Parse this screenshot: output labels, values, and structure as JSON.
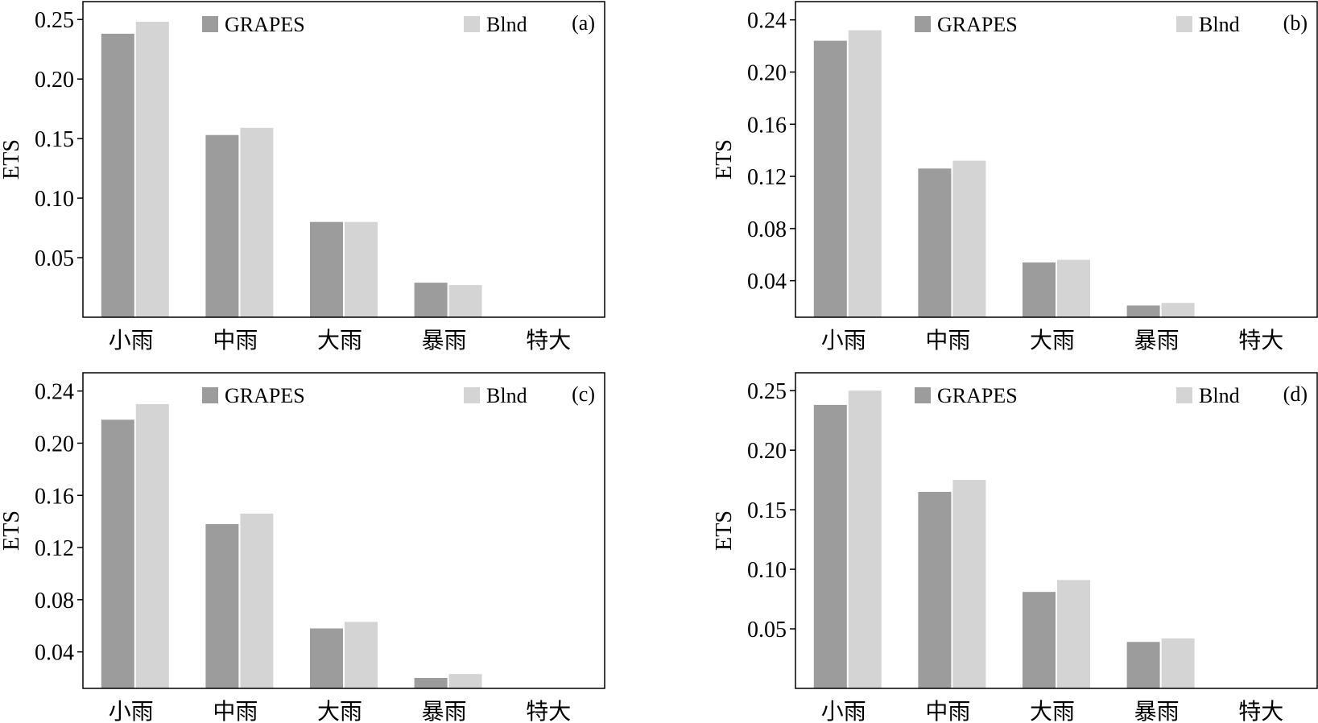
{
  "colors": {
    "grapes": "#9c9c9c",
    "blnd": "#d4d4d4",
    "axis": "#000000"
  },
  "legend": {
    "series_a": "GRAPES",
    "series_b": "Blnd"
  },
  "chart_data": [
    {
      "panel": "(a)",
      "type": "bar",
      "ylabel": "ETS",
      "categories": [
        "小雨",
        "中雨",
        "大雨",
        "暴雨",
        "特大"
      ],
      "ylim": [
        0.0,
        0.265
      ],
      "yticks": [
        "0.05",
        "0.10",
        "0.15",
        "0.20",
        "0.25"
      ],
      "grid": false,
      "legend_position": "top",
      "series": [
        {
          "name": "GRAPES",
          "values": [
            0.238,
            0.153,
            0.08,
            0.029,
            0.0
          ]
        },
        {
          "name": "Blnd",
          "values": [
            0.248,
            0.159,
            0.08,
            0.027,
            0.0
          ]
        }
      ]
    },
    {
      "panel": "(b)",
      "type": "bar",
      "ylabel": "ETS",
      "categories": [
        "小雨",
        "中雨",
        "大雨",
        "暴雨",
        "特大"
      ],
      "ylim": [
        0.012,
        0.254
      ],
      "yticks": [
        "0.04",
        "0.08",
        "0.12",
        "0.16",
        "0.20",
        "0.24"
      ],
      "grid": false,
      "legend_position": "top",
      "series": [
        {
          "name": "GRAPES",
          "values": [
            0.224,
            0.126,
            0.054,
            0.021,
            0.0
          ]
        },
        {
          "name": "Blnd",
          "values": [
            0.232,
            0.132,
            0.056,
            0.023,
            0.0
          ]
        }
      ]
    },
    {
      "panel": "(c)",
      "type": "bar",
      "ylabel": "ETS",
      "categories": [
        "小雨",
        "中雨",
        "大雨",
        "暴雨",
        "特大"
      ],
      "ylim": [
        0.012,
        0.254
      ],
      "yticks": [
        "0.04",
        "0.08",
        "0.12",
        "0.16",
        "0.20",
        "0.24"
      ],
      "grid": false,
      "legend_position": "top",
      "series": [
        {
          "name": "GRAPES",
          "values": [
            0.218,
            0.138,
            0.058,
            0.02,
            0.0
          ]
        },
        {
          "name": "Blnd",
          "values": [
            0.23,
            0.146,
            0.063,
            0.023,
            0.0
          ]
        }
      ]
    },
    {
      "panel": "(d)",
      "type": "bar",
      "ylabel": "ETS",
      "categories": [
        "小雨",
        "中雨",
        "大雨",
        "暴雨",
        "特大"
      ],
      "ylim": [
        0.0,
        0.265
      ],
      "yticks": [
        "0.05",
        "0.10",
        "0.15",
        "0.20",
        "0.25"
      ],
      "grid": false,
      "legend_position": "top",
      "series": [
        {
          "name": "GRAPES",
          "values": [
            0.238,
            0.165,
            0.081,
            0.039,
            0.0
          ]
        },
        {
          "name": "Blnd",
          "values": [
            0.25,
            0.175,
            0.091,
            0.042,
            0.0
          ]
        }
      ]
    }
  ]
}
